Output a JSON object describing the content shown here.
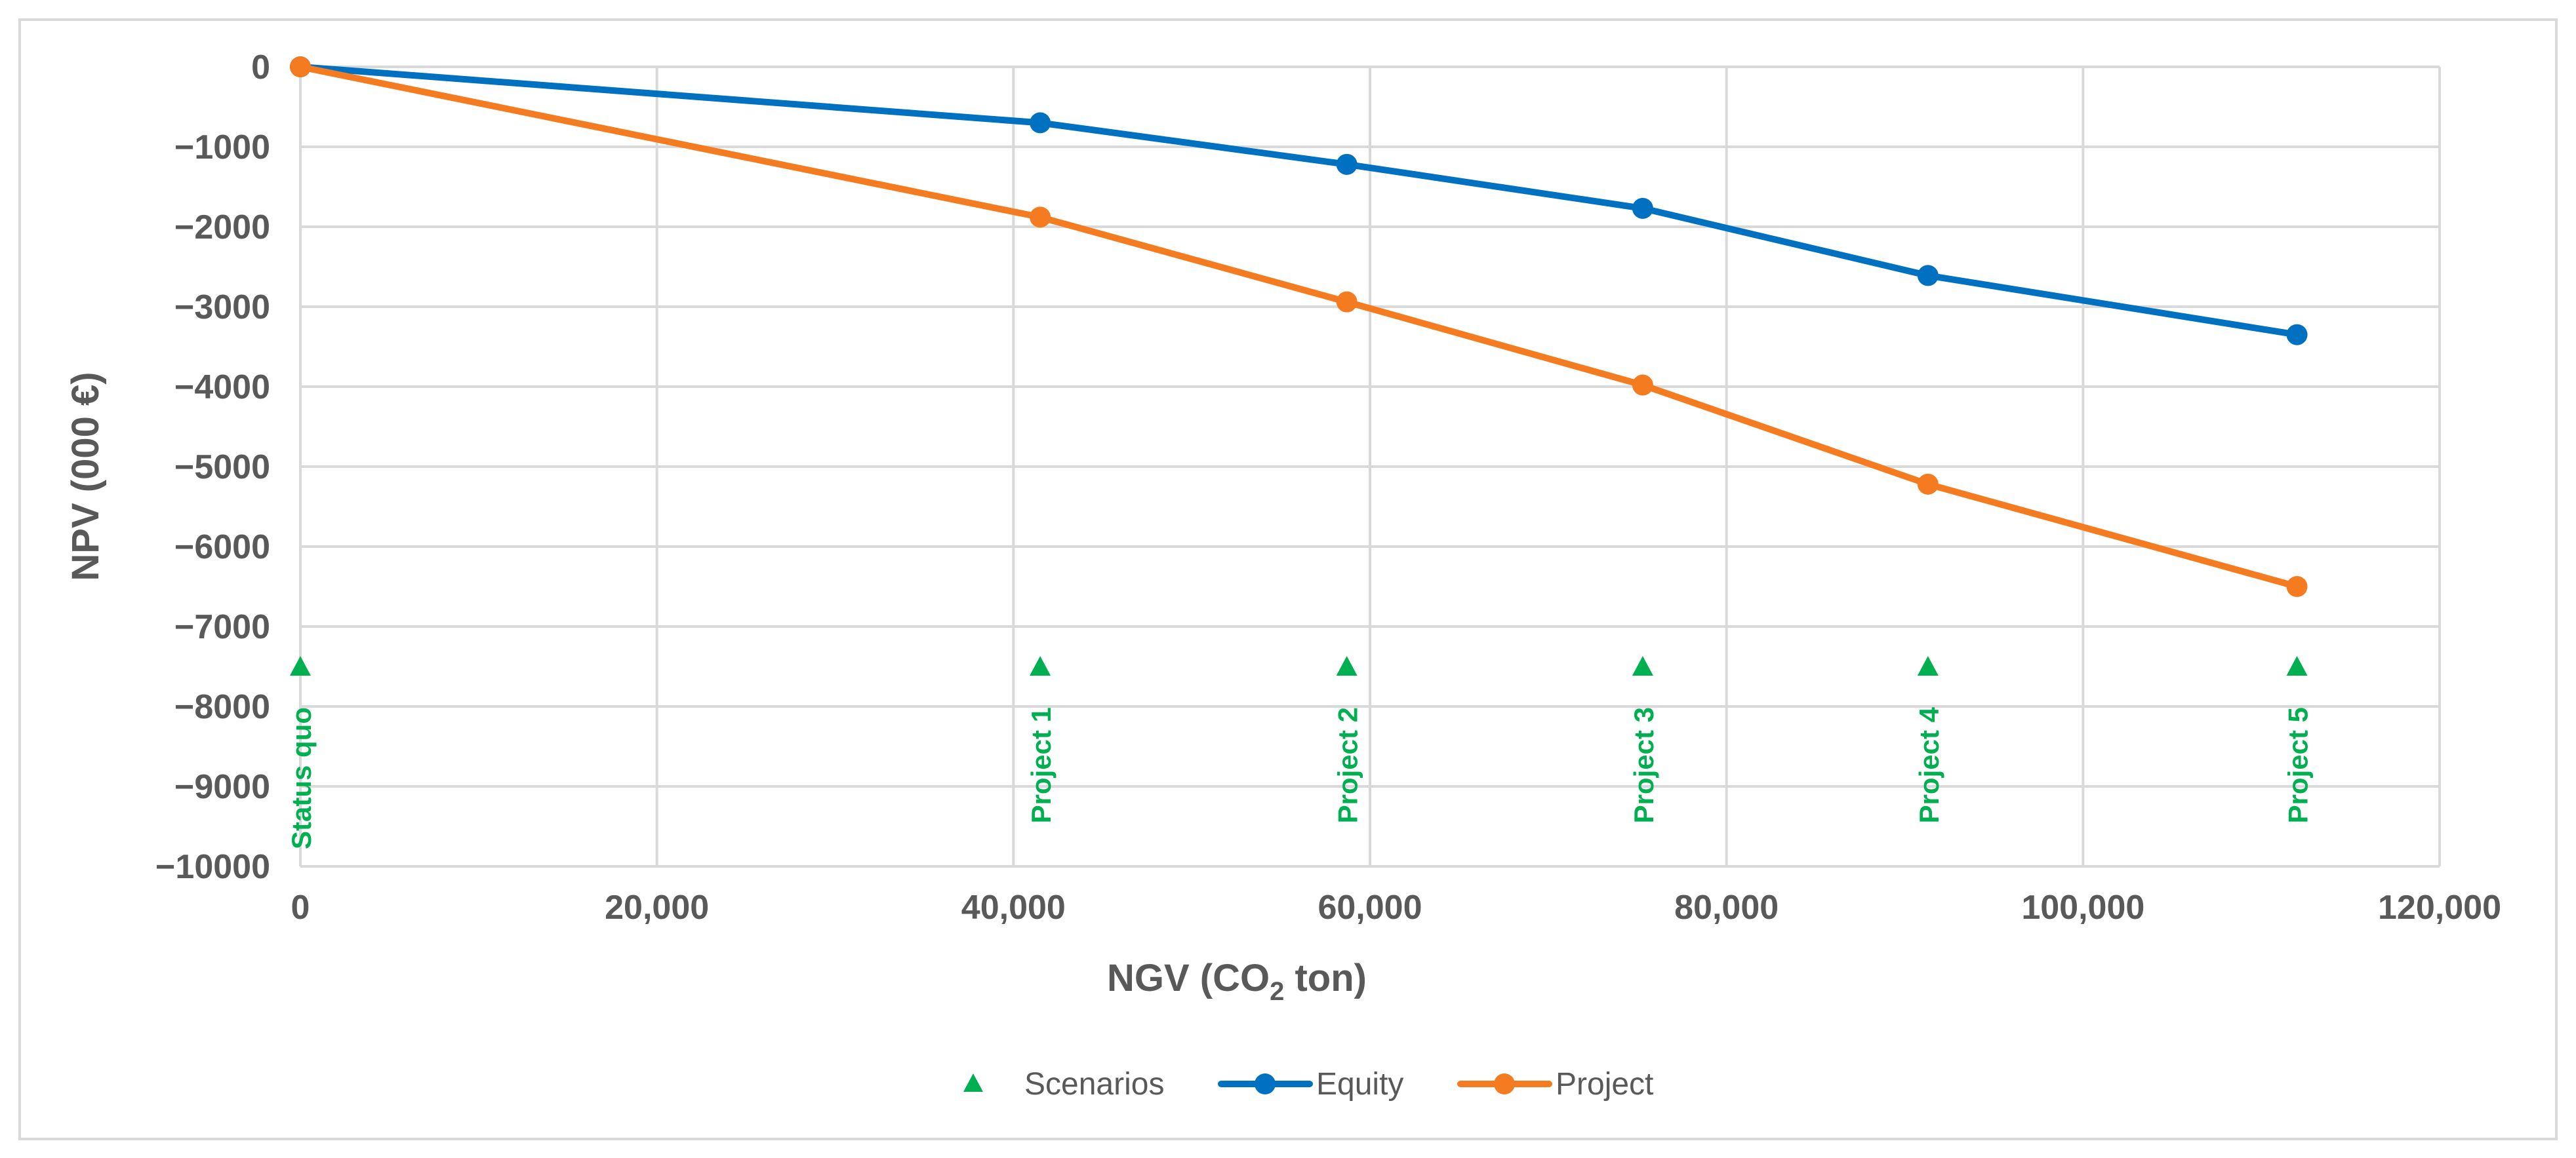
{
  "chart_data": {
    "type": "line",
    "xlabel": {
      "text": "NGV (CO",
      "subscript": "2",
      "suffix": " ton)"
    },
    "ylabel": "NPV (000 €)",
    "xlim": [
      0,
      120000
    ],
    "ylim": [
      -10000,
      0
    ],
    "grid": true,
    "x_tick_labels": [
      "0",
      "20,000",
      "40,000",
      "60,000",
      "80,000",
      "100,000",
      "120,000"
    ],
    "y_tick_labels": [
      "0",
      "−1000",
      "−2000",
      "−3000",
      "−4000",
      "−5000",
      "−6000",
      "−7000",
      "−8000",
      "−9000",
      "−10000"
    ],
    "scenarios": {
      "name": "Scenarios",
      "color": "#00b050",
      "marker_y": -7500,
      "points": [
        {
          "x": 0,
          "label": "Status quo"
        },
        {
          "x": 41500,
          "label": "Project 1"
        },
        {
          "x": 58700,
          "label": "Project 2"
        },
        {
          "x": 75300,
          "label": "Project 3"
        },
        {
          "x": 91300,
          "label": "Project 4"
        },
        {
          "x": 112000,
          "label": "Project 5"
        }
      ]
    },
    "series": [
      {
        "name": "Equity",
        "color": "#0070c0",
        "x": [
          0,
          41500,
          58700,
          75300,
          91300,
          112000
        ],
        "values": [
          0,
          -700,
          -1220,
          -1770,
          -2610,
          -3350
        ]
      },
      {
        "name": "Project",
        "color": "#f47b20",
        "x": [
          0,
          41500,
          58700,
          75300,
          91300,
          112000
        ],
        "values": [
          0,
          -1880,
          -2940,
          -3980,
          -5220,
          -6500
        ]
      }
    ],
    "legend": {
      "position": "bottom",
      "items": [
        "Scenarios",
        "Equity",
        "Project"
      ]
    }
  }
}
